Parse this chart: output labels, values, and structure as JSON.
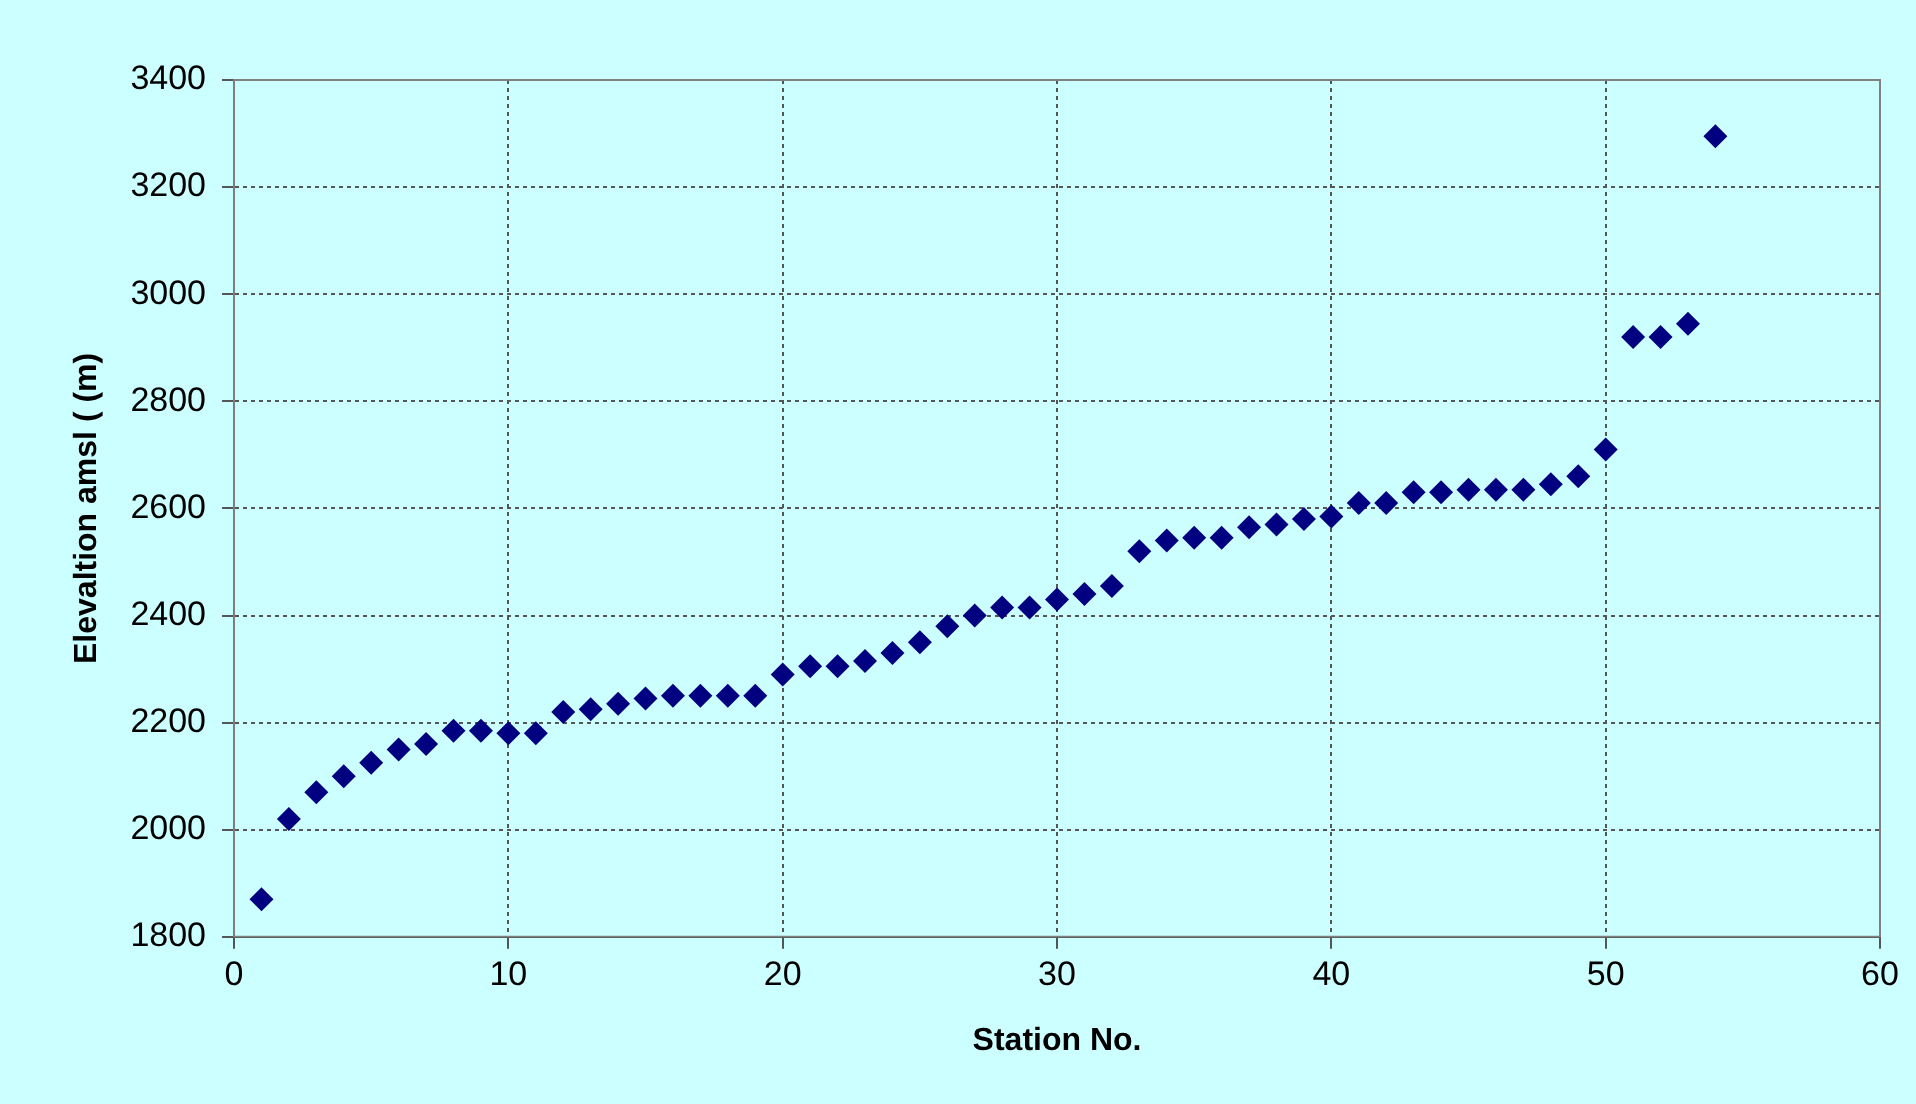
{
  "chart_data": {
    "type": "scatter",
    "xlabel": "Station No.",
    "ylabel": "Elevaltion amsl ( (m)",
    "x": [
      1,
      2,
      3,
      4,
      5,
      6,
      7,
      8,
      9,
      10,
      11,
      12,
      13,
      14,
      15,
      16,
      17,
      18,
      19,
      20,
      21,
      22,
      23,
      24,
      25,
      26,
      27,
      28,
      29,
      30,
      31,
      32,
      33,
      34,
      35,
      36,
      37,
      38,
      39,
      40,
      41,
      42,
      43,
      44,
      45,
      46,
      47,
      48,
      49,
      50,
      51,
      52,
      53,
      54
    ],
    "series": [
      {
        "color": "#000080",
        "values": [
          1870,
          2020,
          2070,
          2100,
          2125,
          2150,
          2160,
          2185,
          2185,
          2180,
          2180,
          2220,
          2225,
          2235,
          2245,
          2250,
          2250,
          2250,
          2250,
          2290,
          2305,
          2305,
          2315,
          2330,
          2350,
          2380,
          2400,
          2415,
          2415,
          2430,
          2440,
          2455,
          2520,
          2540,
          2545,
          2545,
          2565,
          2570,
          2580,
          2585,
          2610,
          2610,
          2630,
          2630,
          2635,
          2635,
          2635,
          2645,
          2660,
          2710,
          2920,
          2920,
          2945,
          3295
        ]
      }
    ],
    "xlim": [
      0,
      60
    ],
    "xticks": [
      0,
      10,
      20,
      30,
      40,
      50,
      60
    ],
    "ylim": [
      1800,
      3400
    ],
    "yticks": [
      1800,
      2000,
      2200,
      2400,
      2600,
      2800,
      3000,
      3200,
      3400
    ],
    "grid": true,
    "marker": "diamond",
    "legend": false
  }
}
